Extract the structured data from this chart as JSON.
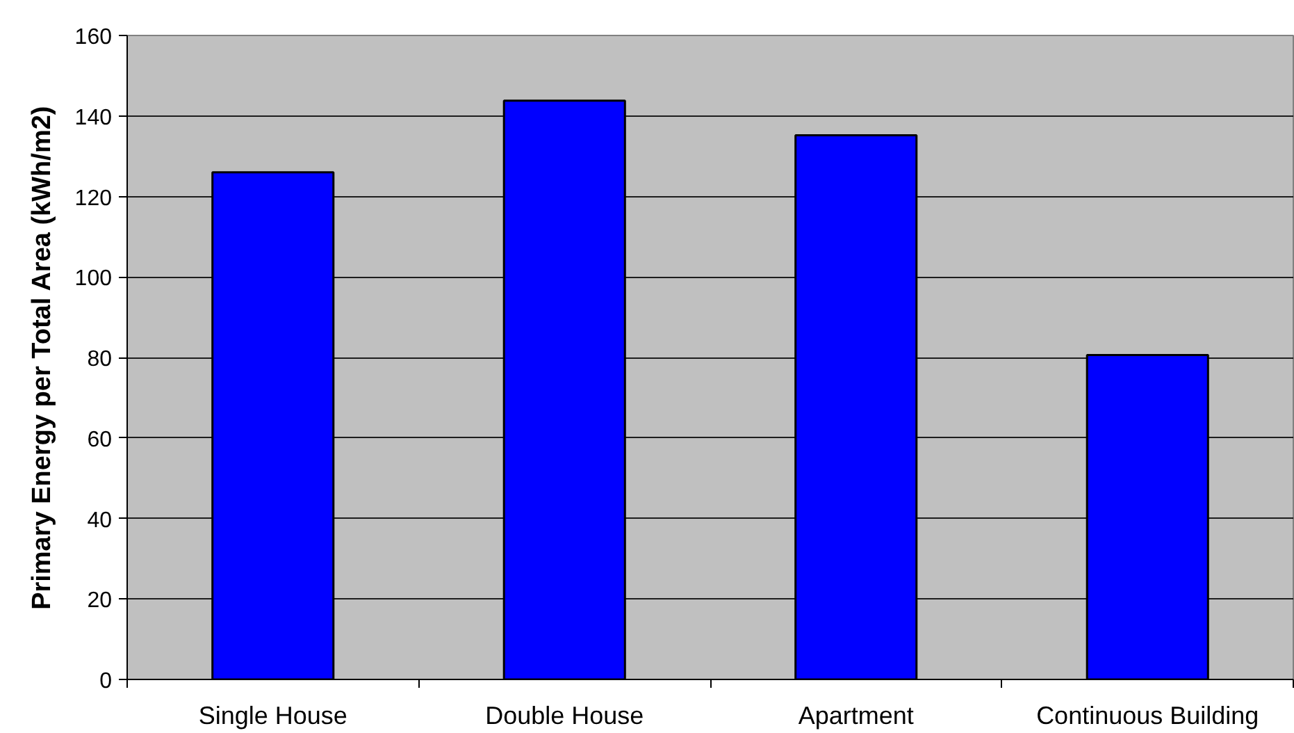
{
  "chart_data": {
    "type": "bar",
    "ylabel": "Primary Energy per Total Area (kWh/m2)",
    "categories": [
      "Single House",
      "Double House",
      "Apartment",
      "Continuous Building"
    ],
    "values": [
      126,
      143.8,
      135.2,
      80.6
    ],
    "color": "#0000ff",
    "ylim": [
      0,
      160
    ],
    "yticks": [
      0,
      20,
      40,
      60,
      80,
      100,
      120,
      140,
      160
    ],
    "grid": "y"
  }
}
